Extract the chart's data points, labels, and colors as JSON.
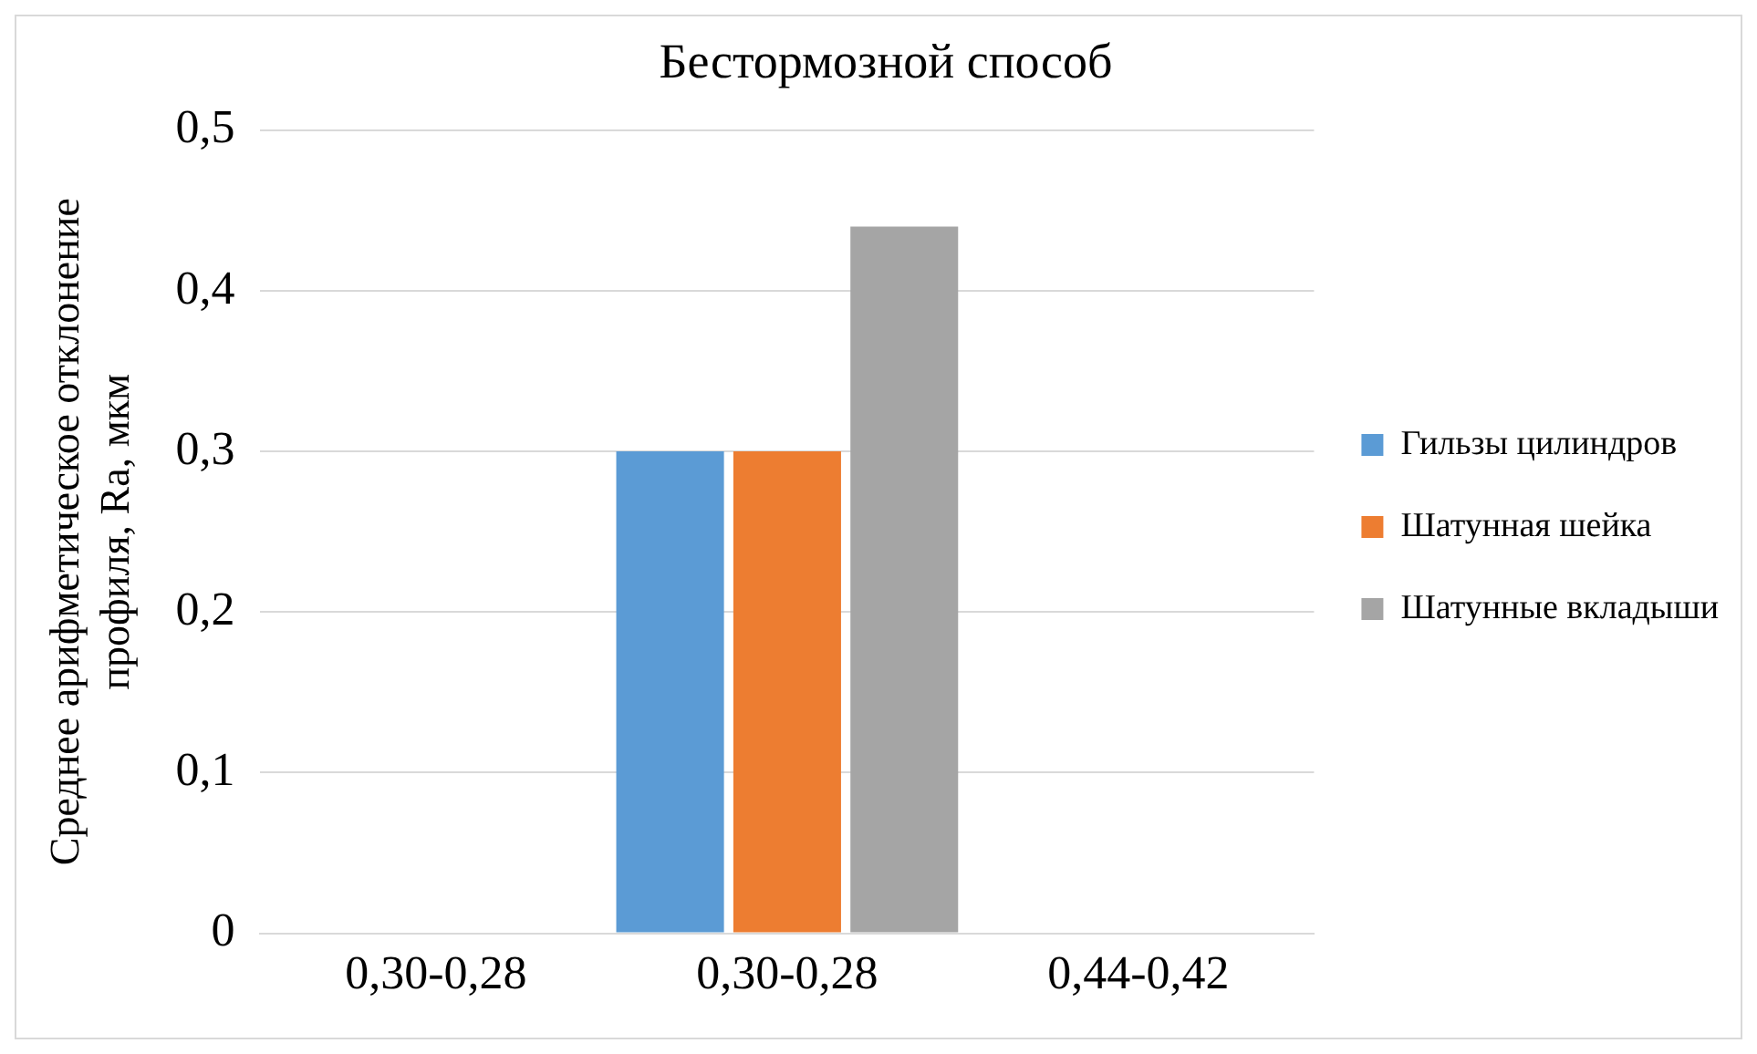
{
  "chart_data": {
    "type": "bar",
    "title": "Бестормозной способ",
    "ylabel": "Среднее арифметическое отклонение профиля, Ra, мкм",
    "categories": [
      "0,30-0,28",
      "0,30-0,28",
      "0,44-0,42"
    ],
    "series": [
      {
        "name": "Гильзы цилиндров",
        "color": "#5b9bd5",
        "values": [
          null,
          0.3,
          null
        ]
      },
      {
        "name": "Шатунная шейка",
        "color": "#ed7d31",
        "values": [
          null,
          0.3,
          null
        ]
      },
      {
        "name": "Шатунные вкладыши",
        "color": "#a5a5a5",
        "values": [
          null,
          0.44,
          null
        ]
      }
    ],
    "ylim": [
      0,
      0.5
    ],
    "yticks": [
      {
        "value": 0,
        "label": "0"
      },
      {
        "value": 0.1,
        "label": "0,1"
      },
      {
        "value": 0.2,
        "label": "0,2"
      },
      {
        "value": 0.3,
        "label": "0,3"
      },
      {
        "value": 0.4,
        "label": "0,4"
      },
      {
        "value": 0.5,
        "label": "0,5"
      }
    ],
    "grid": "y",
    "legend": "right"
  }
}
